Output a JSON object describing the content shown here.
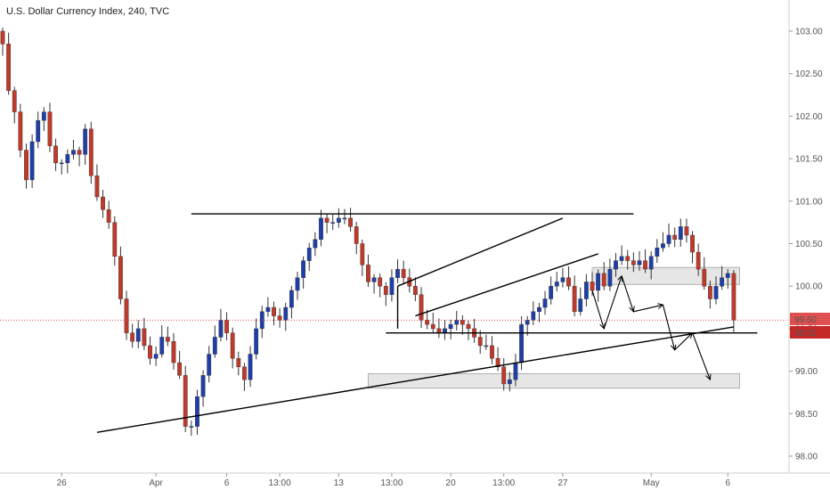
{
  "header": {
    "title": "U.S. Dollar Currency Index, 240, TVC"
  },
  "colors": {
    "up": "#1e3fa8",
    "down": "#c0392b",
    "wick": "#333333",
    "line": "#000000",
    "zone_fill": "#e6e6e6",
    "zone_stroke": "#b0b0b0",
    "price_line": "#e05050",
    "price_tag": "#e05050",
    "timer_tag": "#c62828"
  },
  "price_labels": {
    "last": "99.60",
    "countdown": "39:52"
  },
  "chart_data": {
    "type": "candlestick",
    "title": "U.S. Dollar Currency Index, 240, TVC",
    "ylim": [
      97.9,
      103.35
    ],
    "y_ticks": [
      "103.00",
      "102.50",
      "102.00",
      "101.50",
      "101.00",
      "100.50",
      "100.00",
      "99.50",
      "99.00",
      "98.50",
      "98.00"
    ],
    "y_tick_values": [
      103.0,
      102.5,
      102.0,
      101.5,
      101.0,
      100.5,
      100.0,
      99.5,
      99.0,
      98.5,
      98.0
    ],
    "x_ticks": [
      "26",
      "Apr",
      "6",
      "13:00",
      "13",
      "13:00",
      "20",
      "13:00",
      "27",
      "May",
      "6"
    ],
    "x_tick_index": [
      10,
      26,
      38,
      47,
      57,
      66,
      76,
      85,
      95,
      110,
      123
    ],
    "last_price": 99.6,
    "close": [
      102.85,
      102.3,
      102.05,
      101.6,
      101.25,
      101.7,
      101.95,
      102.05,
      101.65,
      101.45,
      101.45,
      101.55,
      101.6,
      101.55,
      101.85,
      101.3,
      101.05,
      100.9,
      100.75,
      100.35,
      99.85,
      99.45,
      99.35,
      99.5,
      99.3,
      99.15,
      99.2,
      99.4,
      99.35,
      99.1,
      98.95,
      98.35,
      98.35,
      98.7,
      98.95,
      99.2,
      99.4,
      99.6,
      99.45,
      99.15,
      99.05,
      98.9,
      99.2,
      99.5,
      99.7,
      99.75,
      99.65,
      99.6,
      99.75,
      99.95,
      100.1,
      100.3,
      100.45,
      100.55,
      100.8,
      100.75,
      100.75,
      100.8,
      100.8,
      100.7,
      100.5,
      100.25,
      100.05,
      100.1,
      100.0,
      99.9,
      100.1,
      100.2,
      100.1,
      100.0,
      99.9,
      99.6,
      99.55,
      99.5,
      99.45,
      99.5,
      99.55,
      99.6,
      99.55,
      99.5,
      99.4,
      99.3,
      99.3,
      99.15,
      99.05,
      98.85,
      98.9,
      99.1,
      99.55,
      99.6,
      99.7,
      99.75,
      99.85,
      100.0,
      100.05,
      100.1,
      100.0,
      99.7,
      99.85,
      100.05,
      99.95,
      100.15,
      100.0,
      100.2,
      100.3,
      100.35,
      100.3,
      100.25,
      100.3,
      100.2,
      100.35,
      100.45,
      100.5,
      100.6,
      100.55,
      100.7,
      100.6,
      100.4,
      100.2,
      100.0,
      99.85,
      100.0,
      100.1,
      100.15,
      99.6
    ]
  },
  "annotations": {
    "lines": [
      {
        "label": "resistance",
        "from": {
          "i": 32,
          "p": 100.85
        },
        "to": {
          "i": 107,
          "p": 100.85
        }
      },
      {
        "label": "support",
        "from": {
          "i": 65,
          "p": 99.45
        },
        "to": {
          "i": 128,
          "p": 99.45
        }
      },
      {
        "label": "trendline",
        "from": {
          "i": 16,
          "p": 98.28
        },
        "to": {
          "i": 124,
          "p": 99.52
        }
      },
      {
        "label": "channel-upper",
        "from": {
          "i": 67,
          "p": 100.0
        },
        "to": {
          "i": 95,
          "p": 100.8
        }
      },
      {
        "label": "channel-lower",
        "from": {
          "i": 70,
          "p": 99.65
        },
        "to": {
          "i": 101,
          "p": 100.38
        }
      },
      {
        "label": "channel-left",
        "from": {
          "i": 67,
          "p": 100.0
        },
        "to": {
          "i": 67,
          "p": 99.5
        }
      }
    ],
    "zones": [
      {
        "label": "upper-zone",
        "i1": 100,
        "i2": 125,
        "p1": 100.22,
        "p2": 100.02
      },
      {
        "label": "lower-zone",
        "i1": 62,
        "i2": 125,
        "p1": 98.97,
        "p2": 98.8
      }
    ],
    "path": [
      {
        "i": 100,
        "p": 99.95
      },
      {
        "i": 102,
        "p": 99.5
      },
      {
        "i": 105,
        "p": 100.12
      },
      {
        "i": 107,
        "p": 99.7
      },
      {
        "i": 112,
        "p": 99.78
      },
      {
        "i": 114,
        "p": 99.25
      },
      {
        "i": 117,
        "p": 99.45
      },
      {
        "i": 120,
        "p": 98.9
      }
    ]
  }
}
